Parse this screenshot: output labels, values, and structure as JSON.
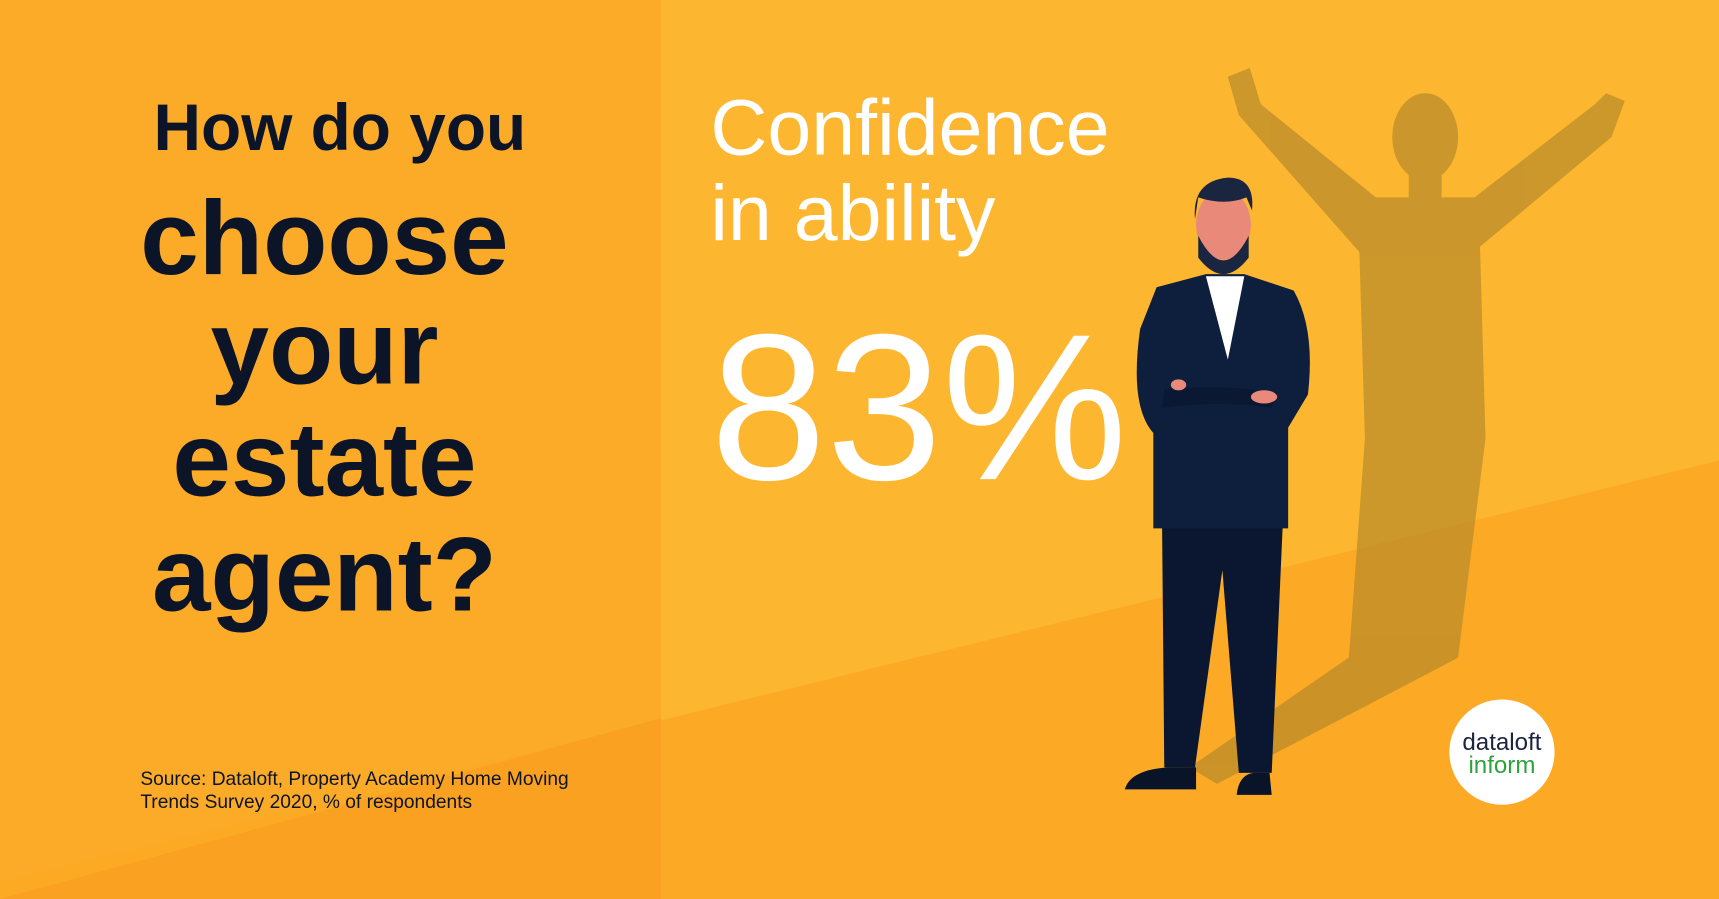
{
  "heading": {
    "intro": "How do you",
    "lines": [
      "choose",
      "your",
      "estate",
      "agent?"
    ]
  },
  "stat": {
    "label_lines": [
      "Confidence",
      "in ability"
    ],
    "value": "83%"
  },
  "source": [
    "Source: Dataloft, Property Academy Home Moving",
    "Trends Survey 2020, % of respondents"
  ],
  "logo": {
    "top": "dataloft",
    "bottom": "inform"
  }
}
